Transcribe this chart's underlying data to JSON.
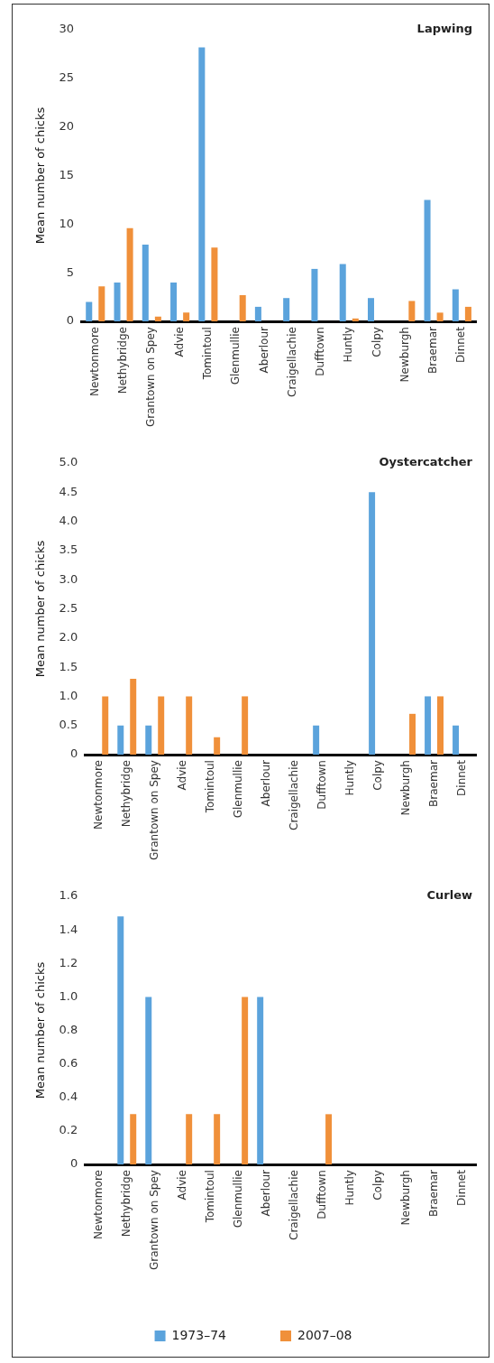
{
  "chart_data": [
    {
      "type": "bar",
      "title": "Lapwing",
      "ylabel": "Mean number of chicks",
      "categories": [
        "Newtonmore",
        "Nethybridge",
        "Grantown on Spey",
        "Advie",
        "Tomintoul",
        "Glenmullie",
        "Aberlour",
        "Craigellachie",
        "Dufftown",
        "Huntly",
        "Colpy",
        "Newburgh",
        "Braemar",
        "Dinnet"
      ],
      "series": [
        {
          "color": "#5ba3dc",
          "values": [
            2.0,
            4.0,
            7.9,
            4.0,
            28.2,
            0,
            1.5,
            2.4,
            5.4,
            5.9,
            2.4,
            0,
            12.5,
            3.3
          ]
        },
        {
          "color": "#f0903a",
          "values": [
            3.6,
            9.6,
            0.5,
            0.9,
            7.6,
            2.7,
            0,
            0,
            0,
            0.3,
            0,
            2.1,
            0.9,
            1.5
          ]
        }
      ],
      "ylim": [
        0,
        30
      ],
      "yticks": [
        0,
        5,
        10,
        15,
        20,
        25,
        30
      ],
      "grid": false,
      "legend": false
    },
    {
      "type": "bar",
      "title": "Oystercatcher",
      "ylabel": "Mean number of chicks",
      "categories": [
        "Newtonmore",
        "Nethybridge",
        "Grantown on Spey",
        "Advie",
        "Tomintoul",
        "Glenmullie",
        "Aberlour",
        "Craigellachie",
        "Dufftown",
        "Huntly",
        "Colpy",
        "Newburgh",
        "Braemar",
        "Dinnet"
      ],
      "series": [
        {
          "color": "#5ba3dc",
          "values": [
            0,
            0.5,
            0.5,
            0,
            0,
            0,
            0,
            0,
            0.5,
            0,
            4.5,
            0,
            1.0,
            0.5
          ]
        },
        {
          "color": "#f0903a",
          "values": [
            1.0,
            1.3,
            1.0,
            1.0,
            0.3,
            1.0,
            0,
            0,
            0,
            0,
            0,
            0.7,
            1.0,
            0
          ]
        }
      ],
      "ylim": [
        0,
        5
      ],
      "yticks": [
        0,
        {
          "value": 0.5,
          "label": "0.5"
        },
        {
          "value": 1,
          "label": "1.0"
        },
        {
          "value": 1.5,
          "label": "1.5"
        },
        {
          "value": 2,
          "label": "2.0"
        },
        {
          "value": 2.5,
          "label": "2.5"
        },
        {
          "value": 3,
          "label": "3.0"
        },
        {
          "value": 3.5,
          "label": "3.5"
        },
        {
          "value": 4,
          "label": "4.0"
        },
        {
          "value": 4.5,
          "label": "4.5"
        },
        {
          "value": 5,
          "label": "5.0"
        }
      ],
      "grid": false,
      "legend": false
    },
    {
      "type": "bar",
      "title": "Curlew",
      "ylabel": "Mean number of chicks",
      "categories": [
        "Newtonmore",
        "Nethybridge",
        "Grantown on Spey",
        "Advie",
        "Tomintoul",
        "Glenmullie",
        "Aberlour",
        "Craigellachie",
        "Dufftown",
        "Huntly",
        "Colpy",
        "Newburgh",
        "Braemar",
        "Dinnet"
      ],
      "series": [
        {
          "name": "1973–74",
          "color": "#5ba3dc",
          "values": [
            0,
            1.48,
            1.0,
            0,
            0,
            0,
            1.0,
            0,
            0,
            0,
            0,
            0,
            0,
            0
          ]
        },
        {
          "name": "2007–08",
          "color": "#f0903a",
          "values": [
            0,
            0.3,
            0,
            0.3,
            0.3,
            1.0,
            0,
            0,
            0.3,
            0,
            0,
            0,
            0,
            0
          ]
        }
      ],
      "ylim": [
        0,
        1.6
      ],
      "yticks": [
        0,
        {
          "value": 0.2,
          "label": "0.2"
        },
        {
          "value": 0.4,
          "label": "0.4"
        },
        {
          "value": 0.6,
          "label": "0.6"
        },
        {
          "value": 0.8,
          "label": "0.8"
        },
        {
          "value": 1,
          "label": "1.0"
        },
        {
          "value": 1.2,
          "label": "1.2"
        },
        {
          "value": 1.4,
          "label": "1.4"
        },
        {
          "value": 1.6,
          "label": "1.6"
        }
      ],
      "grid": false,
      "legend": "bottom"
    }
  ]
}
